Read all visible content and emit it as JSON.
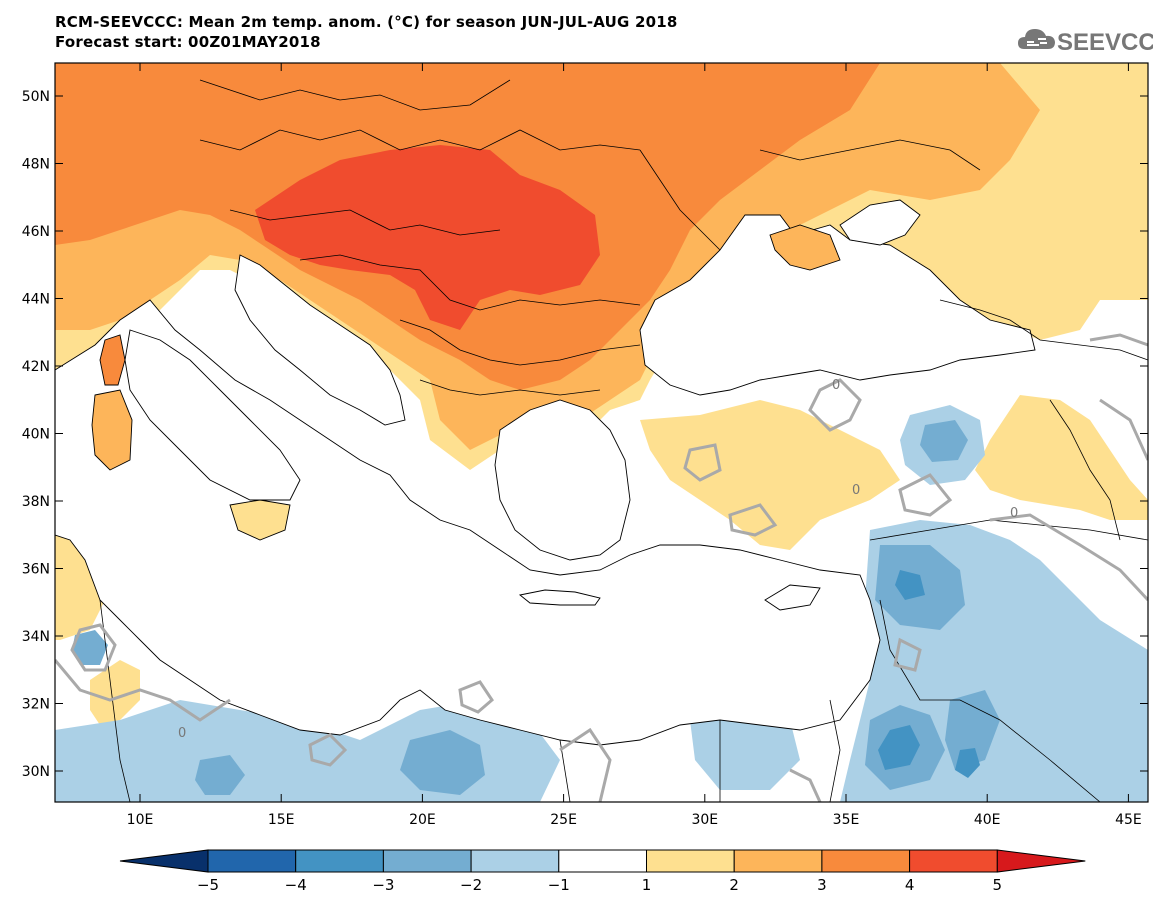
{
  "header": {
    "title_line1": "RCM-SEEVCCC: Mean 2m temp. anom. (°C) for season JUN-JUL-AUG 2018",
    "title_line2": "Forecast start: 00Z01MAY2018"
  },
  "logo": {
    "text": "SEEVCCC",
    "icon": "cloud-icon"
  },
  "map": {
    "lat_labels": [
      "50N",
      "48N",
      "46N",
      "44N",
      "42N",
      "40N",
      "38N",
      "36N",
      "34N",
      "32N",
      "30N"
    ],
    "lon_labels": [
      "10E",
      "15E",
      "20E",
      "25E",
      "30E",
      "35E",
      "40E",
      "45E"
    ],
    "contour_labels": [
      "0",
      "0",
      "0",
      "0"
    ]
  },
  "colorbar": {
    "tick_labels": [
      "-5",
      "-4",
      "-3",
      "-2",
      "-1",
      "1",
      "2",
      "3",
      "4",
      "5"
    ],
    "colors": [
      "#08306b",
      "#2166ac",
      "#4393c3",
      "#74add1",
      "#abd0e6",
      "#ffffff",
      "#fee090",
      "#fdb55a",
      "#f88a3c",
      "#f04c2e",
      "#d7191c"
    ]
  },
  "palette": {
    "anom_1_2": "#fee090",
    "anom_2_3": "#fdb55a",
    "anom_3_4": "#f88a3c",
    "anom_4_5": "#f04c2e",
    "anom_m1_m2": "#abd0e6",
    "anom_m2_m3": "#74add1",
    "anom_m3_m4": "#4393c3",
    "contour_zero": "#a9a9a9"
  }
}
